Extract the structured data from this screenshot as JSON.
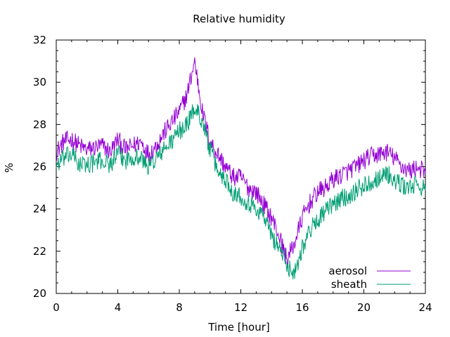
{
  "chart_data": {
    "type": "line",
    "title": "Relative humidity",
    "xlabel": "Time [hour]",
    "ylabel": "%",
    "xlim": [
      0,
      24
    ],
    "ylim": [
      20,
      32
    ],
    "xticks": [
      0,
      4,
      8,
      12,
      16,
      20,
      24
    ],
    "yticks": [
      20,
      22,
      24,
      26,
      28,
      30,
      32
    ],
    "grid": false,
    "legend_position": "bottom-right",
    "x": [
      0,
      0.5,
      1,
      1.5,
      2,
      2.5,
      3,
      3.5,
      4,
      4.5,
      5,
      5.5,
      6,
      6.5,
      7,
      7.5,
      8,
      8.5,
      9,
      9.5,
      10,
      10.5,
      11,
      11.5,
      12,
      12.5,
      13,
      13.5,
      14,
      14.5,
      15,
      15.5,
      16,
      16.5,
      17,
      17.5,
      18,
      18.5,
      19,
      19.5,
      20,
      20.5,
      21,
      21.5,
      22,
      22.5,
      23,
      23.5,
      24
    ],
    "series": [
      {
        "name": "aerosol",
        "color": "#9400d3",
        "values": [
          26.7,
          27.2,
          27.3,
          27.0,
          26.8,
          26.9,
          27.0,
          26.7,
          27.3,
          26.8,
          27.0,
          27.2,
          26.6,
          27.0,
          27.6,
          28.1,
          28.6,
          29.4,
          31.0,
          28.6,
          27.2,
          26.6,
          26.0,
          25.5,
          25.5,
          25.0,
          24.8,
          24.2,
          23.6,
          22.7,
          21.6,
          22.4,
          23.6,
          24.3,
          24.8,
          25.0,
          25.4,
          25.6,
          25.8,
          26.0,
          26.3,
          26.5,
          26.6,
          26.7,
          26.4,
          26.0,
          25.8,
          26.0,
          25.7
        ]
      },
      {
        "name": "sheath",
        "color": "#009e73",
        "values": [
          26.1,
          26.4,
          26.6,
          26.1,
          26.1,
          26.2,
          26.3,
          26.1,
          26.6,
          26.3,
          26.5,
          26.4,
          26.0,
          26.4,
          26.8,
          27.2,
          27.7,
          28.0,
          28.8,
          28.2,
          26.8,
          25.8,
          25.4,
          24.8,
          24.6,
          24.3,
          24.0,
          23.7,
          22.7,
          22.2,
          21.3,
          21.0,
          22.2,
          23.0,
          23.5,
          23.9,
          24.2,
          24.5,
          24.6,
          24.9,
          25.1,
          25.3,
          25.5,
          25.7,
          25.3,
          25.1,
          25.0,
          25.2,
          24.9
        ]
      }
    ]
  }
}
